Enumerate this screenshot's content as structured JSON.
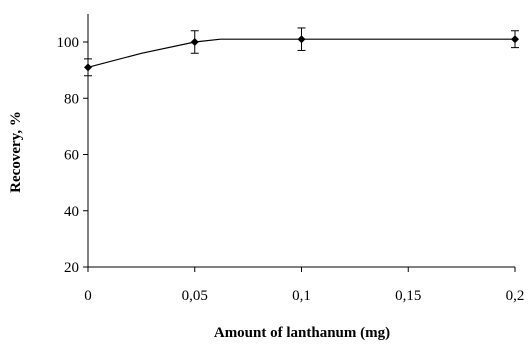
{
  "chart_data": {
    "type": "line",
    "xlabel": "Amount of lanthanum (mg)",
    "ylabel": "Recovery, %",
    "xlim": [
      0,
      0.2
    ],
    "ylim": [
      20,
      110
    ],
    "x_ticks": [
      0,
      0.05,
      0.1,
      0.15,
      0.2
    ],
    "x_tick_labels": [
      "0",
      "0,05",
      "0,1",
      "0,15",
      "0,2"
    ],
    "y_ticks": [
      20,
      40,
      60,
      80,
      100
    ],
    "y_tick_labels": [
      "20",
      "40",
      "60",
      "80",
      "100"
    ],
    "grid": false,
    "legend": "none",
    "points": [
      {
        "x": 0,
        "y": 91,
        "err": 3
      },
      {
        "x": 0.05,
        "y": 100,
        "err": 4
      },
      {
        "x": 0.1,
        "y": 101,
        "err": 4
      },
      {
        "x": 0.2,
        "y": 101,
        "err": 3
      }
    ],
    "fit_line": {
      "x": [
        0,
        0.025,
        0.05,
        0.062,
        0.1,
        0.2
      ],
      "y": [
        91,
        96,
        100,
        101,
        101,
        101
      ]
    },
    "colors": {
      "line": "#000000",
      "marker": "#000000"
    }
  }
}
